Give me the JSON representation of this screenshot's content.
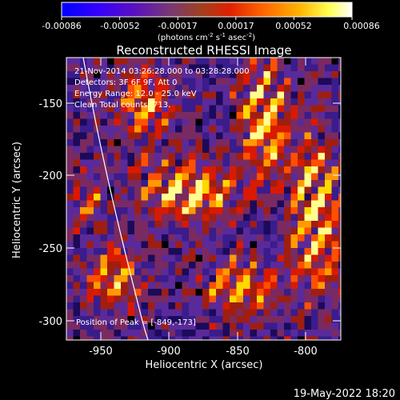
{
  "colorbar": {
    "tick_labels": [
      "-0.00086",
      "-0.00052",
      "-0.00017",
      "0.00017",
      "0.00052",
      "0.00086"
    ],
    "units_line1": "(photons cm",
    "units_sup1": "-2",
    "units_mid1": " s",
    "units_sup2": "-1",
    "units_mid2": " asec",
    "units_sup3": "-2",
    "units_end": ")",
    "colors": [
      "#0000ff",
      "#3300ff",
      "#5a00c8",
      "#7f3c6e",
      "#b44614",
      "#ff3200",
      "#ff7800",
      "#ffc800",
      "#ffff64",
      "#ffffff"
    ]
  },
  "plot": {
    "title": "Reconstructed RHESSI Image",
    "info_lines": [
      "21-Nov-2014 03:26:28.000 to 03:28:28.000",
      "Detectors: 3F 6F 9F, Att 0",
      "Energy Range: 12.0 - 25.0 keV",
      "Clean      Total counts: 713."
    ],
    "peak_label": "Position of Peak = [-849,-173]",
    "xlabel": "Heliocentric X (arcsec)",
    "ylabel": "Heliocentric Y (arcsec)",
    "x_ticks": [
      "-950",
      "-900",
      "-850",
      "-800"
    ],
    "y_ticks": [
      "-150",
      "-200",
      "-250",
      "-300"
    ]
  },
  "footer": {
    "timestamp": "19-May-2022 18:20"
  }
}
